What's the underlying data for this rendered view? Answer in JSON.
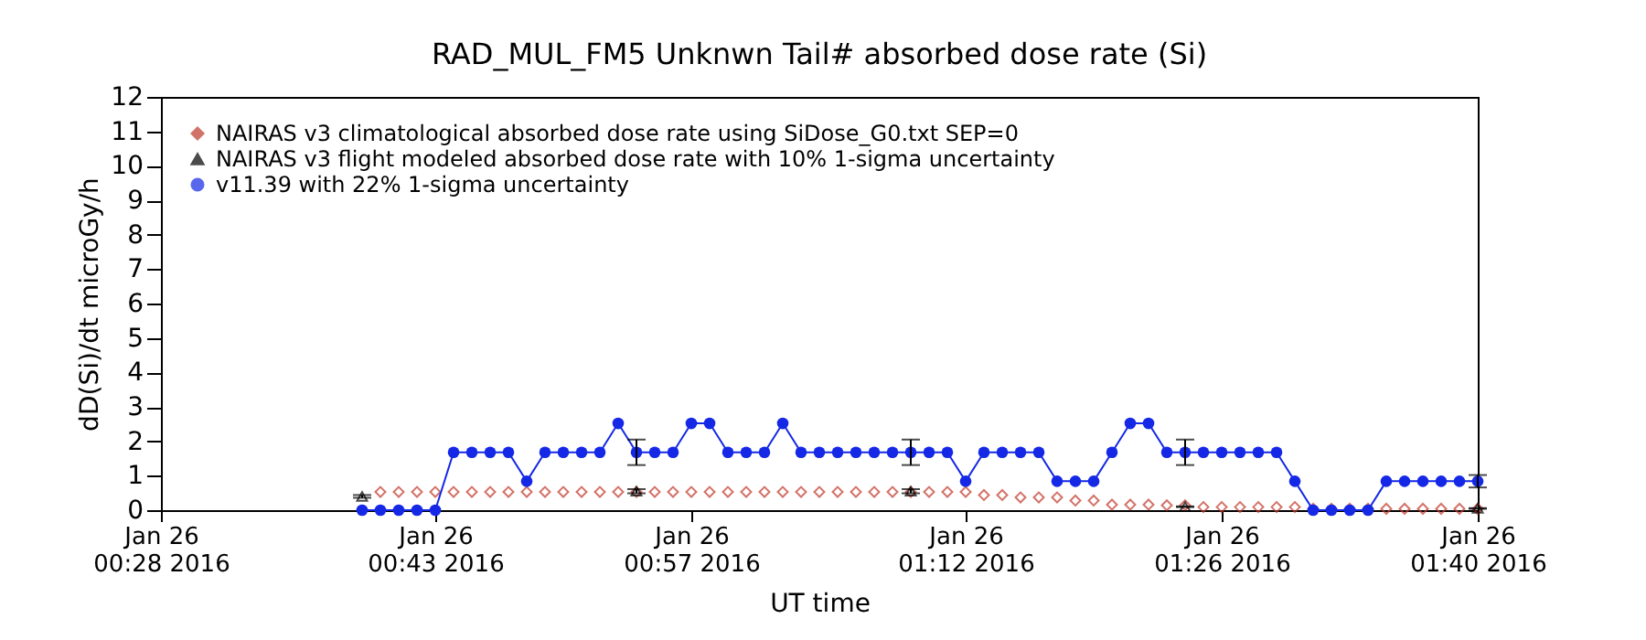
{
  "chart_data": {
    "type": "line",
    "title": "RAD_MUL_FM5 Unknwn Tail#  absorbed dose rate (Si)",
    "xlabel": "UT time",
    "ylabel": "dD(Si)/dt microGy/h",
    "xlim": [
      "2016-01-26T00:28",
      "2016-01-26T01:40"
    ],
    "xticks": [
      {
        "value": "2016-01-26T00:28",
        "label": "Jan 26\n00:28 2016"
      },
      {
        "value": "2016-01-26T00:43",
        "label": "Jan 26\n00:43 2016"
      },
      {
        "value": "2016-01-26T00:57",
        "label": "Jan 26\n00:57 2016"
      },
      {
        "value": "2016-01-26T01:12",
        "label": "Jan 26\n01:12 2016"
      },
      {
        "value": "2016-01-26T01:26",
        "label": "Jan 26\n01:26 2016"
      },
      {
        "value": "2016-01-26T01:40",
        "label": "Jan 26\n01:40 2016"
      }
    ],
    "ylim": [
      0,
      12
    ],
    "yticks": [
      0,
      1,
      2,
      3,
      4,
      5,
      6,
      7,
      8,
      9,
      10,
      11,
      12
    ],
    "grid": false,
    "legend": "top left",
    "series": [
      {
        "name": "NAIRAS v3 climatological absorbed dose rate using SiDose_G0.txt SEP=0",
        "type": "scatter",
        "marker": "diamond",
        "color": "#c0392b",
        "x": [
          "2016-01-26T00:40",
          "2016-01-26T00:41",
          "2016-01-26T00:42",
          "2016-01-26T00:43",
          "2016-01-26T00:44",
          "2016-01-26T00:45",
          "2016-01-26T00:46",
          "2016-01-26T00:47",
          "2016-01-26T00:48",
          "2016-01-26T00:49",
          "2016-01-26T00:50",
          "2016-01-26T00:51",
          "2016-01-26T00:52",
          "2016-01-26T00:53",
          "2016-01-26T00:54",
          "2016-01-26T00:55",
          "2016-01-26T00:56",
          "2016-01-26T00:57",
          "2016-01-26T00:58",
          "2016-01-26T00:59",
          "2016-01-26T01:00",
          "2016-01-26T01:01",
          "2016-01-26T01:02",
          "2016-01-26T01:03",
          "2016-01-26T01:04",
          "2016-01-26T01:05",
          "2016-01-26T01:06",
          "2016-01-26T01:07",
          "2016-01-26T01:08",
          "2016-01-26T01:09",
          "2016-01-26T01:10",
          "2016-01-26T01:11",
          "2016-01-26T01:12",
          "2016-01-26T01:13",
          "2016-01-26T01:14",
          "2016-01-26T01:15",
          "2016-01-26T01:16",
          "2016-01-26T01:17",
          "2016-01-26T01:18",
          "2016-01-26T01:19",
          "2016-01-26T01:20",
          "2016-01-26T01:21",
          "2016-01-26T01:22",
          "2016-01-26T01:23",
          "2016-01-26T01:24",
          "2016-01-26T01:25",
          "2016-01-26T01:26",
          "2016-01-26T01:27",
          "2016-01-26T01:28",
          "2016-01-26T01:29",
          "2016-01-26T01:30",
          "2016-01-26T01:31",
          "2016-01-26T01:32",
          "2016-01-26T01:33",
          "2016-01-26T01:34",
          "2016-01-26T01:35",
          "2016-01-26T01:36",
          "2016-01-26T01:37",
          "2016-01-26T01:38",
          "2016-01-26T01:39",
          "2016-01-26T01:40"
        ],
        "values": [
          0.53,
          0.53,
          0.53,
          0.53,
          0.53,
          0.53,
          0.53,
          0.53,
          0.53,
          0.53,
          0.53,
          0.53,
          0.53,
          0.53,
          0.53,
          0.53,
          0.53,
          0.53,
          0.53,
          0.53,
          0.53,
          0.53,
          0.53,
          0.53,
          0.53,
          0.53,
          0.53,
          0.53,
          0.53,
          0.53,
          0.53,
          0.53,
          0.53,
          0.44,
          0.44,
          0.37,
          0.37,
          0.37,
          0.28,
          0.28,
          0.16,
          0.16,
          0.16,
          0.14,
          0.14,
          0.09,
          0.09,
          0.09,
          0.09,
          0.09,
          0.09,
          0.04,
          0.04,
          0.04,
          0.04,
          0.04,
          0.04,
          0.04,
          0.04,
          0.04,
          0.04
        ]
      },
      {
        "name": "NAIRAS v3 flight modeled absorbed dose rate with 10% 1-sigma uncertainty",
        "type": "scatter",
        "marker": "triangle",
        "color": "#000000",
        "x": [
          "2016-01-26T00:39",
          "2016-01-26T00:54",
          "2016-01-26T01:09",
          "2016-01-26T01:24",
          "2016-01-26T01:40"
        ],
        "values": [
          0.4,
          0.55,
          0.55,
          0.1,
          0.05
        ],
        "errors": [
          0.04,
          0.06,
          0.06,
          0.01,
          0.01
        ]
      },
      {
        "name": "v11.39 with 22% 1-sigma uncertainty",
        "type": "line",
        "marker": "circle",
        "color": "#1428e6",
        "x": [
          "2016-01-26T00:39",
          "2016-01-26T00:40",
          "2016-01-26T00:41",
          "2016-01-26T00:42",
          "2016-01-26T00:43",
          "2016-01-26T00:44",
          "2016-01-26T00:45",
          "2016-01-26T00:46",
          "2016-01-26T00:47",
          "2016-01-26T00:48",
          "2016-01-26T00:49",
          "2016-01-26T00:50",
          "2016-01-26T00:51",
          "2016-01-26T00:52",
          "2016-01-26T00:53",
          "2016-01-26T00:54",
          "2016-01-26T00:55",
          "2016-01-26T00:56",
          "2016-01-26T00:57",
          "2016-01-26T00:58",
          "2016-01-26T00:59",
          "2016-01-26T01:00",
          "2016-01-26T01:01",
          "2016-01-26T01:02",
          "2016-01-26T01:03",
          "2016-01-26T01:04",
          "2016-01-26T01:05",
          "2016-01-26T01:06",
          "2016-01-26T01:07",
          "2016-01-26T01:08",
          "2016-01-26T01:09",
          "2016-01-26T01:10",
          "2016-01-26T01:11",
          "2016-01-26T01:12",
          "2016-01-26T01:13",
          "2016-01-26T01:14",
          "2016-01-26T01:15",
          "2016-01-26T01:16",
          "2016-01-26T01:17",
          "2016-01-26T01:18",
          "2016-01-26T01:19",
          "2016-01-26T01:20",
          "2016-01-26T01:21",
          "2016-01-26T01:22",
          "2016-01-26T01:23",
          "2016-01-26T01:24",
          "2016-01-26T01:25",
          "2016-01-26T01:26",
          "2016-01-26T01:27",
          "2016-01-26T01:28",
          "2016-01-26T01:29",
          "2016-01-26T01:30",
          "2016-01-26T01:31",
          "2016-01-26T01:32",
          "2016-01-26T01:33",
          "2016-01-26T01:34",
          "2016-01-26T01:35",
          "2016-01-26T01:36",
          "2016-01-26T01:37",
          "2016-01-26T01:38",
          "2016-01-26T01:39",
          "2016-01-26T01:40"
        ],
        "values": [
          0,
          0,
          0,
          0,
          0,
          1.68,
          1.68,
          1.68,
          1.68,
          0.84,
          1.68,
          1.68,
          1.68,
          1.68,
          2.52,
          1.68,
          1.68,
          1.68,
          2.52,
          2.52,
          1.68,
          1.68,
          1.68,
          2.52,
          1.68,
          1.68,
          1.68,
          1.68,
          1.68,
          1.68,
          1.68,
          1.68,
          1.68,
          0.84,
          1.68,
          1.68,
          1.68,
          1.68,
          0.84,
          0.84,
          0.84,
          1.68,
          2.52,
          2.52,
          1.68,
          1.68,
          1.68,
          1.68,
          1.68,
          1.68,
          1.68,
          0.84,
          0,
          0,
          0,
          0,
          0.84,
          0.84,
          0.84,
          0.84,
          0.84,
          0.84
        ],
        "errors": [
          null,
          null,
          null,
          null,
          null,
          null,
          null,
          null,
          null,
          null,
          null,
          null,
          null,
          null,
          null,
          0.37,
          null,
          null,
          null,
          null,
          null,
          null,
          null,
          null,
          null,
          null,
          null,
          null,
          null,
          null,
          0.37,
          null,
          null,
          null,
          null,
          null,
          null,
          null,
          null,
          null,
          null,
          null,
          null,
          null,
          null,
          0.37,
          null,
          null,
          null,
          null,
          null,
          null,
          null,
          null,
          null,
          null,
          null,
          null,
          null,
          null,
          null,
          0.18
        ]
      }
    ]
  }
}
